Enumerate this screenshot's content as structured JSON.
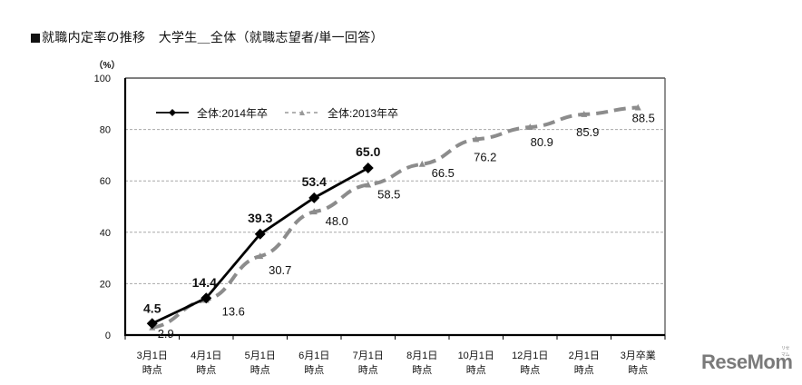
{
  "title": "就職内定率の推移　大学生＿全体（就職志望者/単一回答）",
  "unit_label": "（%）",
  "logo": {
    "text": "ReseMom",
    "ruby": "リセマム"
  },
  "chart_data": {
    "type": "line",
    "title": "就職内定率の推移　大学生＿全体（就職志望者/単一回答）",
    "xlabel": "",
    "ylabel": "（%）",
    "ylim": [
      0,
      100
    ],
    "yticks": [
      0,
      20,
      40,
      60,
      80,
      100
    ],
    "grid": {
      "y": true,
      "style": "dashed"
    },
    "legend_position": "top-left inside",
    "categories": [
      [
        "3月1日",
        "時点"
      ],
      [
        "4月1日",
        "時点"
      ],
      [
        "5月1日",
        "時点"
      ],
      [
        "6月1日",
        "時点"
      ],
      [
        "7月1日",
        "時点"
      ],
      [
        "8月1日",
        "時点"
      ],
      [
        "10月1日",
        "時点"
      ],
      [
        "12月1日",
        "時点"
      ],
      [
        "2月1日",
        "時点"
      ],
      [
        "3月卒業",
        "時点"
      ]
    ],
    "series": [
      {
        "name": "全体：2014年卒",
        "legend_label": "全体:2014年卒",
        "color": "#000000",
        "style": "solid",
        "marker": "diamond",
        "label_bold": true,
        "values": [
          4.5,
          14.4,
          39.3,
          53.4,
          65.0,
          null,
          null,
          null,
          null,
          null
        ],
        "labels": [
          "4.5",
          "14.4",
          "39.3",
          "53.4",
          "65.0"
        ]
      },
      {
        "name": "全体：2013年卒",
        "legend_label": "全体:2013年卒",
        "color": "#8c8c8c",
        "style": "dashed",
        "marker": "triangle",
        "label_bold": false,
        "values": [
          2.9,
          13.6,
          30.7,
          48.0,
          58.5,
          66.5,
          76.2,
          80.9,
          85.9,
          88.5
        ],
        "labels": [
          "2.9",
          "13.6",
          "30.7",
          "48.0",
          "58.5",
          "66.5",
          "76.2",
          "80.9",
          "85.9",
          "88.5"
        ]
      }
    ]
  }
}
